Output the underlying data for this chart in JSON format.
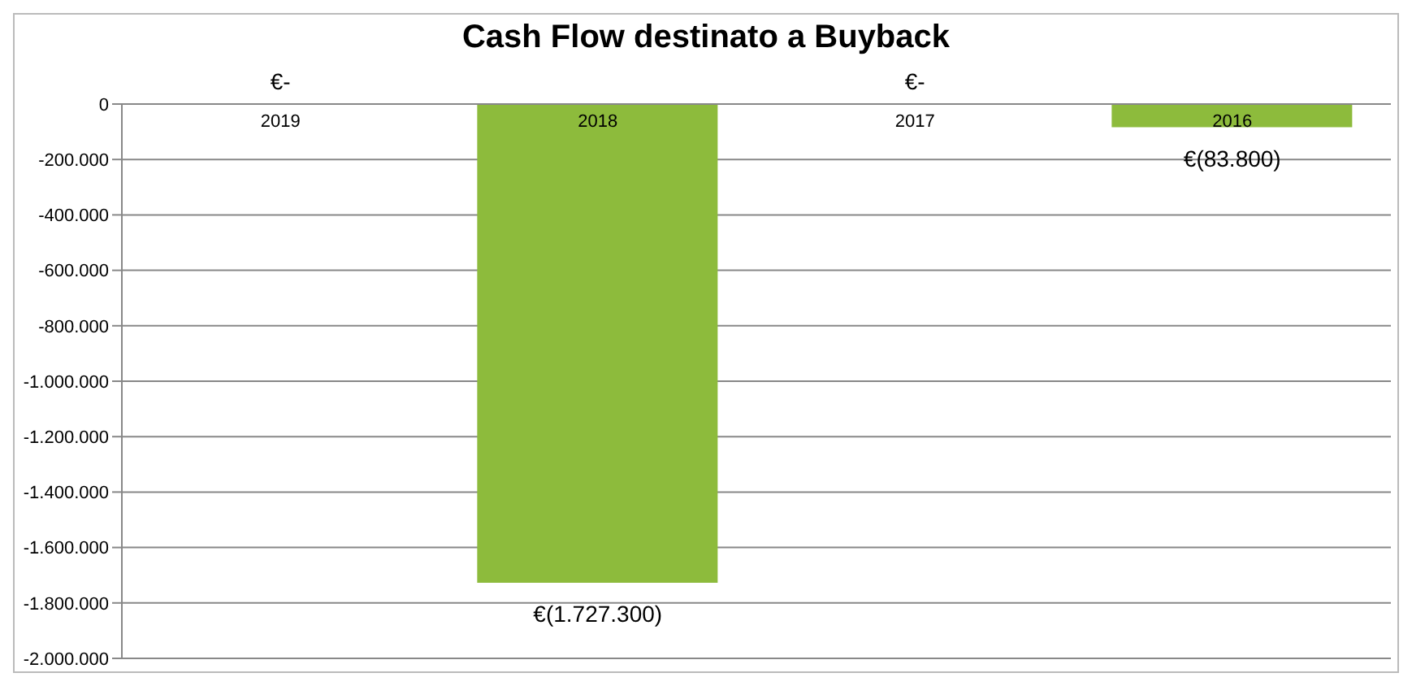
{
  "chart_data": {
    "type": "bar",
    "title": "Cash Flow destinato a Buyback",
    "categories": [
      "2019",
      "2018",
      "2017",
      "2016"
    ],
    "values": [
      0,
      -1727300,
      0,
      -83800
    ],
    "value_labels": [
      "€-",
      "€(1.727.300)",
      "€-",
      "€(83.800)"
    ],
    "color": "#8dbb3c",
    "ylim": [
      -2000000,
      0
    ],
    "yticks": [
      {
        "value": 0,
        "label": "0"
      },
      {
        "value": -200000,
        "label": "-200.000"
      },
      {
        "value": -400000,
        "label": "-400.000"
      },
      {
        "value": -600000,
        "label": "-600.000"
      },
      {
        "value": -800000,
        "label": "-800.000"
      },
      {
        "value": -1000000,
        "label": "-1.000.000"
      },
      {
        "value": -1200000,
        "label": "-1.200.000"
      },
      {
        "value": -1400000,
        "label": "-1.400.000"
      },
      {
        "value": -1600000,
        "label": "-1.600.000"
      },
      {
        "value": -1800000,
        "label": "-1.800.000"
      },
      {
        "value": -2000000,
        "label": "-2.000.000"
      }
    ],
    "grid": "y",
    "legend": false
  }
}
